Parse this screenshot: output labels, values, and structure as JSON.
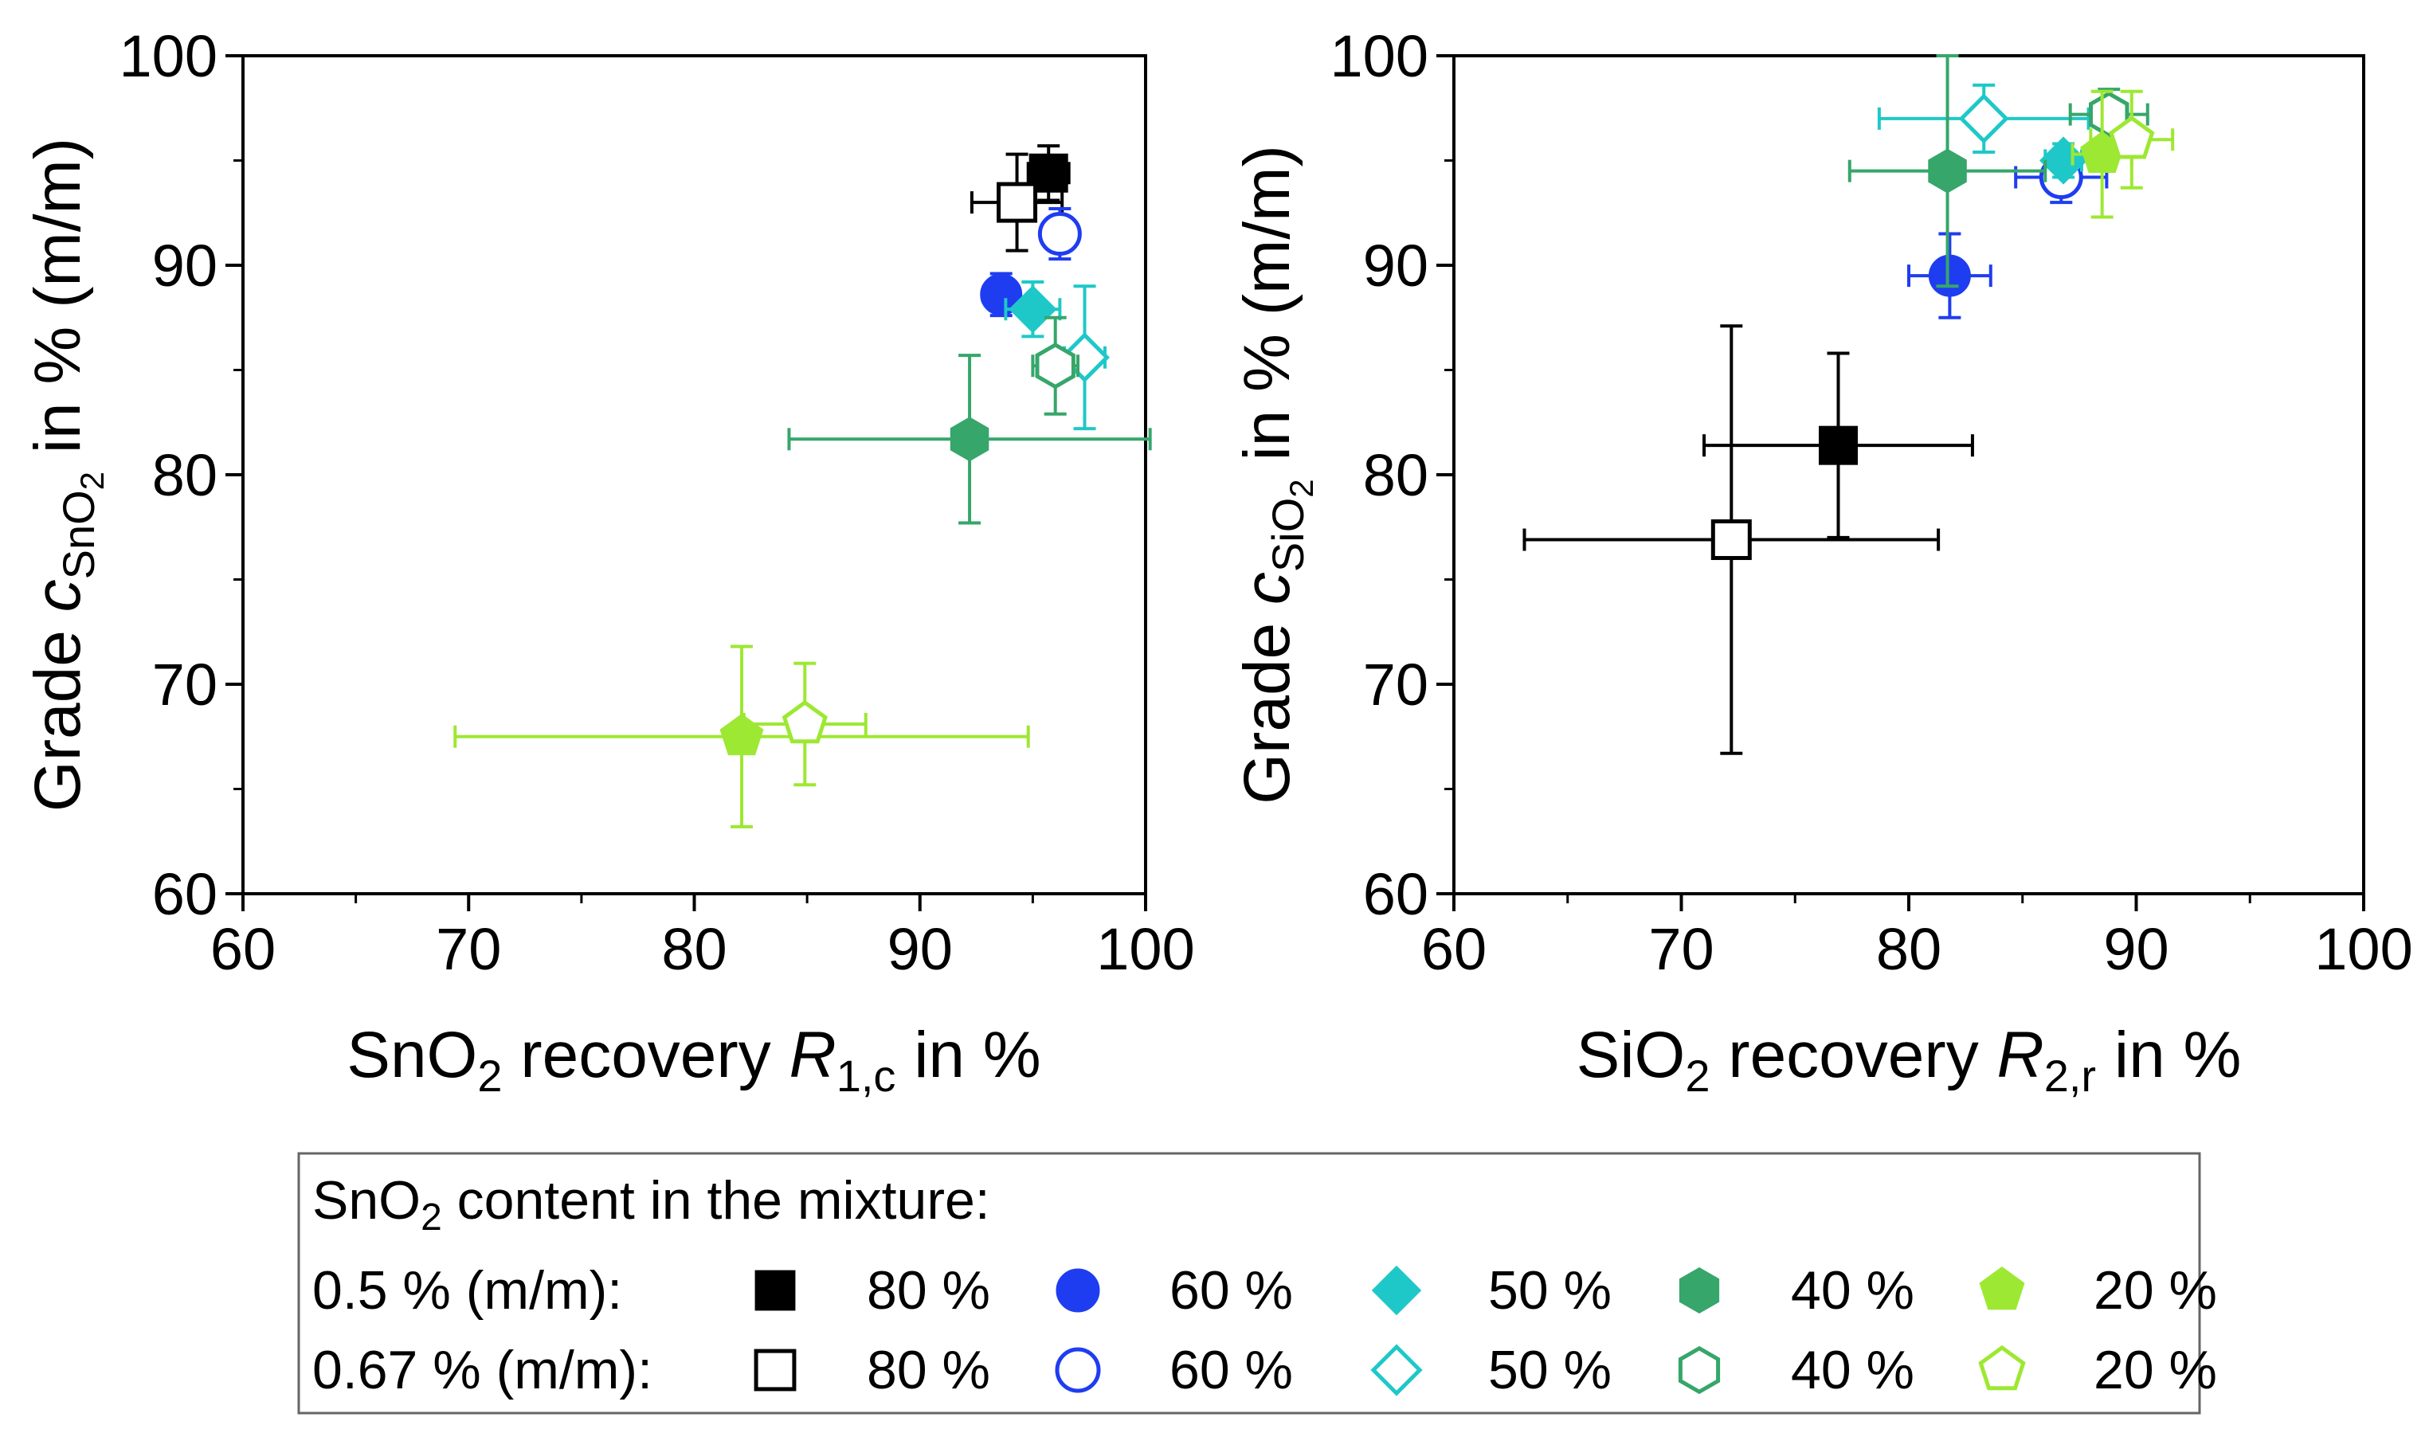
{
  "colors": {
    "c80": "#000000",
    "c60": "#1f3df0",
    "c50": "#1fc8c8",
    "c40": "#36a66a",
    "c20": "#9de832"
  },
  "chart_data": [
    {
      "type": "scatter",
      "title": "",
      "xlabel": {
        "main": "SnO",
        "sub1": "2",
        "mid": " recovery ",
        "italic": "R",
        "sub2": "1,c",
        "tail": " in %"
      },
      "ylabel": {
        "main": "Grade ",
        "italic": "c",
        "sub": "SnO",
        "subsub": "2",
        "tail": " in % (m/m)"
      },
      "xlim": [
        60,
        100
      ],
      "ylim": [
        60,
        100
      ],
      "xticks": [
        "60",
        "70",
        "80",
        "90",
        "100"
      ],
      "yticks": [
        "60",
        "70",
        "80",
        "90",
        "100"
      ],
      "points": [
        {
          "series": "0.5 % (m/m) – 80 %",
          "marker": "square",
          "color": "c80",
          "filled": true,
          "x": 95.7,
          "y": 94.4,
          "xerr": 0.9,
          "yerr": 1.3
        },
        {
          "series": "0.67 % (m/m) – 80 %",
          "marker": "square",
          "color": "c80",
          "filled": false,
          "x": 94.3,
          "y": 93.0,
          "xerr": 2.0,
          "yerr": 2.3
        },
        {
          "series": "0.5 % (m/m) – 60 %",
          "marker": "circle",
          "color": "c60",
          "filled": true,
          "x": 93.6,
          "y": 88.6,
          "xerr": 0.6,
          "yerr": 1.0
        },
        {
          "series": "0.67 % (m/m) – 60 %",
          "marker": "circle",
          "color": "c60",
          "filled": false,
          "x": 96.2,
          "y": 91.5,
          "xerr": 0.6,
          "yerr": 1.2
        },
        {
          "series": "0.5 % (m/m) – 50 %",
          "marker": "diamond",
          "color": "c50",
          "filled": true,
          "x": 95.0,
          "y": 87.9,
          "xerr": 1.2,
          "yerr": 1.3
        },
        {
          "series": "0.67 % (m/m) – 50 %",
          "marker": "diamond",
          "color": "c50",
          "filled": false,
          "x": 97.3,
          "y": 85.6,
          "xerr": 0.9,
          "yerr": 3.4
        },
        {
          "series": "0.5 % (m/m) – 40 %",
          "marker": "hexagon",
          "color": "c40",
          "filled": true,
          "x": 92.2,
          "y": 81.7,
          "xerr": 8.0,
          "yerr": 4.0
        },
        {
          "series": "0.67 % (m/m) – 40 %",
          "marker": "hexagon",
          "color": "c40",
          "filled": false,
          "x": 96.0,
          "y": 85.2,
          "xerr": 1.0,
          "yerr": 2.3
        },
        {
          "series": "0.5 % (m/m) – 20 %",
          "marker": "pentagon",
          "color": "c20",
          "filled": true,
          "x": 82.1,
          "y": 67.5,
          "xerr": 12.7,
          "yerr": 4.3
        },
        {
          "series": "0.67 % (m/m) – 20 %",
          "marker": "pentagon",
          "color": "c20",
          "filled": false,
          "x": 84.9,
          "y": 68.1,
          "xerr": 2.7,
          "yerr": 2.9
        }
      ]
    },
    {
      "type": "scatter",
      "title": "",
      "xlabel": {
        "main": "SiO",
        "sub1": "2",
        "mid": " recovery ",
        "italic": "R",
        "sub2": "2,r",
        "tail": " in %"
      },
      "ylabel": {
        "main": "Grade ",
        "italic": "c",
        "sub": "SiO",
        "subsub": "2",
        "tail": " in % (m/m)"
      },
      "xlim": [
        60,
        100
      ],
      "ylim": [
        60,
        100
      ],
      "xticks": [
        "60",
        "70",
        "80",
        "90",
        "100"
      ],
      "yticks": [
        "60",
        "70",
        "80",
        "90",
        "100"
      ],
      "points": [
        {
          "series": "0.5 % (m/m) – 80 %",
          "marker": "square",
          "color": "c80",
          "filled": true,
          "x": 76.9,
          "y": 81.4,
          "xerr": 5.9,
          "yerr": 4.4
        },
        {
          "series": "0.67 % (m/m) – 80 %",
          "marker": "square",
          "color": "c80",
          "filled": false,
          "x": 72.2,
          "y": 76.9,
          "xerr": 9.1,
          "yerr": 10.2
        },
        {
          "series": "0.5 % (m/m) – 60 %",
          "marker": "circle",
          "color": "c60",
          "filled": true,
          "x": 81.8,
          "y": 89.5,
          "xerr": 1.8,
          "yerr": 2.0
        },
        {
          "series": "0.67 % (m/m) – 60 %",
          "marker": "circle",
          "color": "c60",
          "filled": false,
          "x": 86.7,
          "y": 94.2,
          "xerr": 2.0,
          "yerr": 1.2
        },
        {
          "series": "0.5 % (m/m) – 50 %",
          "marker": "diamond",
          "color": "c50",
          "filled": true,
          "x": 86.8,
          "y": 95.0,
          "xerr": 0.8,
          "yerr": 0.8
        },
        {
          "series": "0.67 % (m/m) – 50 %",
          "marker": "diamond",
          "color": "c50",
          "filled": false,
          "x": 83.3,
          "y": 97.0,
          "xerr": 4.6,
          "yerr": 1.6
        },
        {
          "series": "0.5 % (m/m) – 40 %",
          "marker": "hexagon",
          "color": "c40",
          "filled": true,
          "x": 81.7,
          "y": 94.5,
          "xerr": 4.3,
          "yerr": 5.5
        },
        {
          "series": "0.67 % (m/m) – 40 %",
          "marker": "hexagon",
          "color": "c40",
          "filled": false,
          "x": 88.8,
          "y": 97.2,
          "xerr": 1.7,
          "yerr": 1.2
        },
        {
          "series": "0.5 % (m/m) – 20 %",
          "marker": "pentagon",
          "color": "c20",
          "filled": true,
          "x": 88.5,
          "y": 95.3,
          "xerr": 1.3,
          "yerr": 3.0
        },
        {
          "series": "0.67 % (m/m) – 20 %",
          "marker": "pentagon",
          "color": "c20",
          "filled": false,
          "x": 89.8,
          "y": 96.0,
          "xerr": 1.8,
          "yerr": 2.3
        }
      ]
    }
  ],
  "legend": {
    "title_main": "SnO",
    "title_sub": "2",
    "title_tail": " content in the mixture:",
    "rows": [
      {
        "label": "0.5 % (m/m):",
        "filled": true
      },
      {
        "label": "0.67 % (m/m):",
        "filled": false
      }
    ],
    "entries": [
      {
        "marker": "square",
        "color": "c80",
        "label": "80 %"
      },
      {
        "marker": "circle",
        "color": "c60",
        "label": "60 %"
      },
      {
        "marker": "diamond",
        "color": "c50",
        "label": "50 %"
      },
      {
        "marker": "hexagon",
        "color": "c40",
        "label": "40 %"
      },
      {
        "marker": "pentagon",
        "color": "c20",
        "label": "20 %"
      }
    ]
  }
}
